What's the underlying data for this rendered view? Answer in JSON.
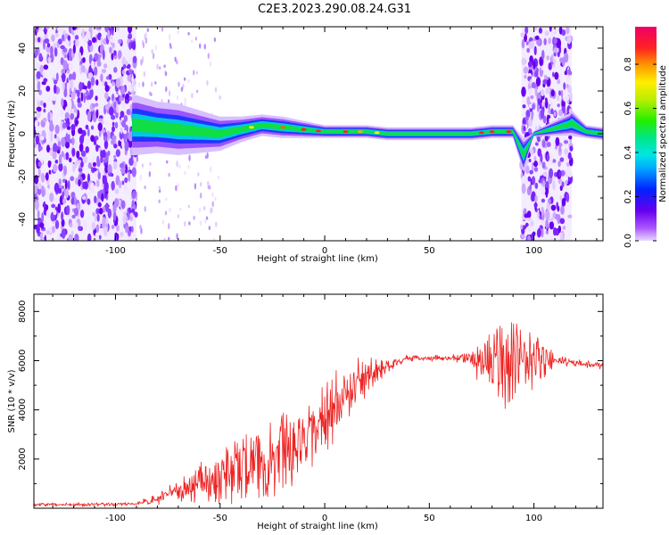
{
  "title": "C2E3.2023.290.08.24.G31",
  "colorbar": {
    "label": "Normalized spectral amplitude",
    "ticks": [
      "0.0",
      "0.2",
      "0.4",
      "0.6",
      "0.8"
    ],
    "tick_values": [
      0.0,
      0.2,
      0.4,
      0.6,
      0.8
    ],
    "range": [
      0,
      0.97
    ]
  },
  "chart_data": [
    {
      "type": "heatmap",
      "xlabel": "Height of straight line (km)",
      "ylabel": "Frequency (Hz)",
      "xlim": [
        -139,
        133
      ],
      "ylim": [
        -50,
        50
      ],
      "x_ticks": [
        "-100",
        "-50",
        "0",
        "50",
        "100"
      ],
      "x_tick_values": [
        -100,
        -50,
        0,
        50,
        100
      ],
      "y_ticks": [
        "-40",
        "-20",
        "0",
        "20",
        "40"
      ],
      "y_tick_values": [
        -40,
        -20,
        0,
        20,
        40
      ],
      "noise_regions": [
        [
          -139,
          -90
        ],
        [
          94,
          118
        ]
      ],
      "signal_trace": {
        "x": [
          -90,
          -80,
          -70,
          -60,
          -50,
          -40,
          -30,
          -20,
          -10,
          0,
          10,
          20,
          30,
          40,
          50,
          60,
          70,
          80,
          90,
          95,
          100,
          110,
          118,
          125,
          133
        ],
        "frequency": [
          4,
          3,
          2,
          1,
          0,
          2,
          4,
          3,
          2,
          1,
          1,
          1,
          0,
          0,
          0,
          0,
          0,
          1,
          1,
          -10,
          0,
          0,
          5,
          1,
          0
        ],
        "width": [
          14,
          12,
          12,
          10,
          8,
          6,
          5,
          5,
          4,
          3,
          3,
          3,
          3,
          3,
          3,
          3,
          3,
          3,
          3,
          8,
          0,
          0,
          6,
          3,
          3
        ]
      }
    },
    {
      "type": "line",
      "xlabel": "Height of straight line (km)",
      "ylabel": "SNR (10 * v/v)",
      "xlim": [
        -139,
        133
      ],
      "ylim": [
        0,
        8700
      ],
      "x_ticks": [
        "-100",
        "-50",
        "0",
        "50",
        "100"
      ],
      "x_tick_values": [
        -100,
        -50,
        0,
        50,
        100
      ],
      "y_ticks": [
        "2000",
        "4000",
        "6000",
        "8000"
      ],
      "y_tick_values": [
        2000,
        4000,
        6000,
        8000
      ],
      "series": [
        {
          "color": "#ee2222",
          "baseline_x": [
            -139,
            -100,
            -90,
            -80,
            -70,
            -60,
            -50,
            -40,
            -30,
            -20,
            -10,
            0,
            10,
            20,
            30,
            40,
            50,
            60,
            70,
            80,
            90,
            100,
            110,
            120,
            133
          ],
          "baseline_y": [
            150,
            150,
            200,
            350,
            700,
            1000,
            1300,
            1600,
            1900,
            2300,
            2700,
            3600,
            4600,
            5300,
            5800,
            6100,
            6100,
            6100,
            6100,
            6000,
            6000,
            6000,
            6000,
            5900,
            5800
          ],
          "spike_amplitude": [
            80,
            80,
            100,
            250,
            600,
            900,
            1400,
            1800,
            2000,
            2000,
            1600,
            1800,
            1400,
            1000,
            300,
            150,
            150,
            150,
            300,
            2500,
            2200,
            1600,
            250,
            200,
            200
          ]
        }
      ]
    }
  ]
}
